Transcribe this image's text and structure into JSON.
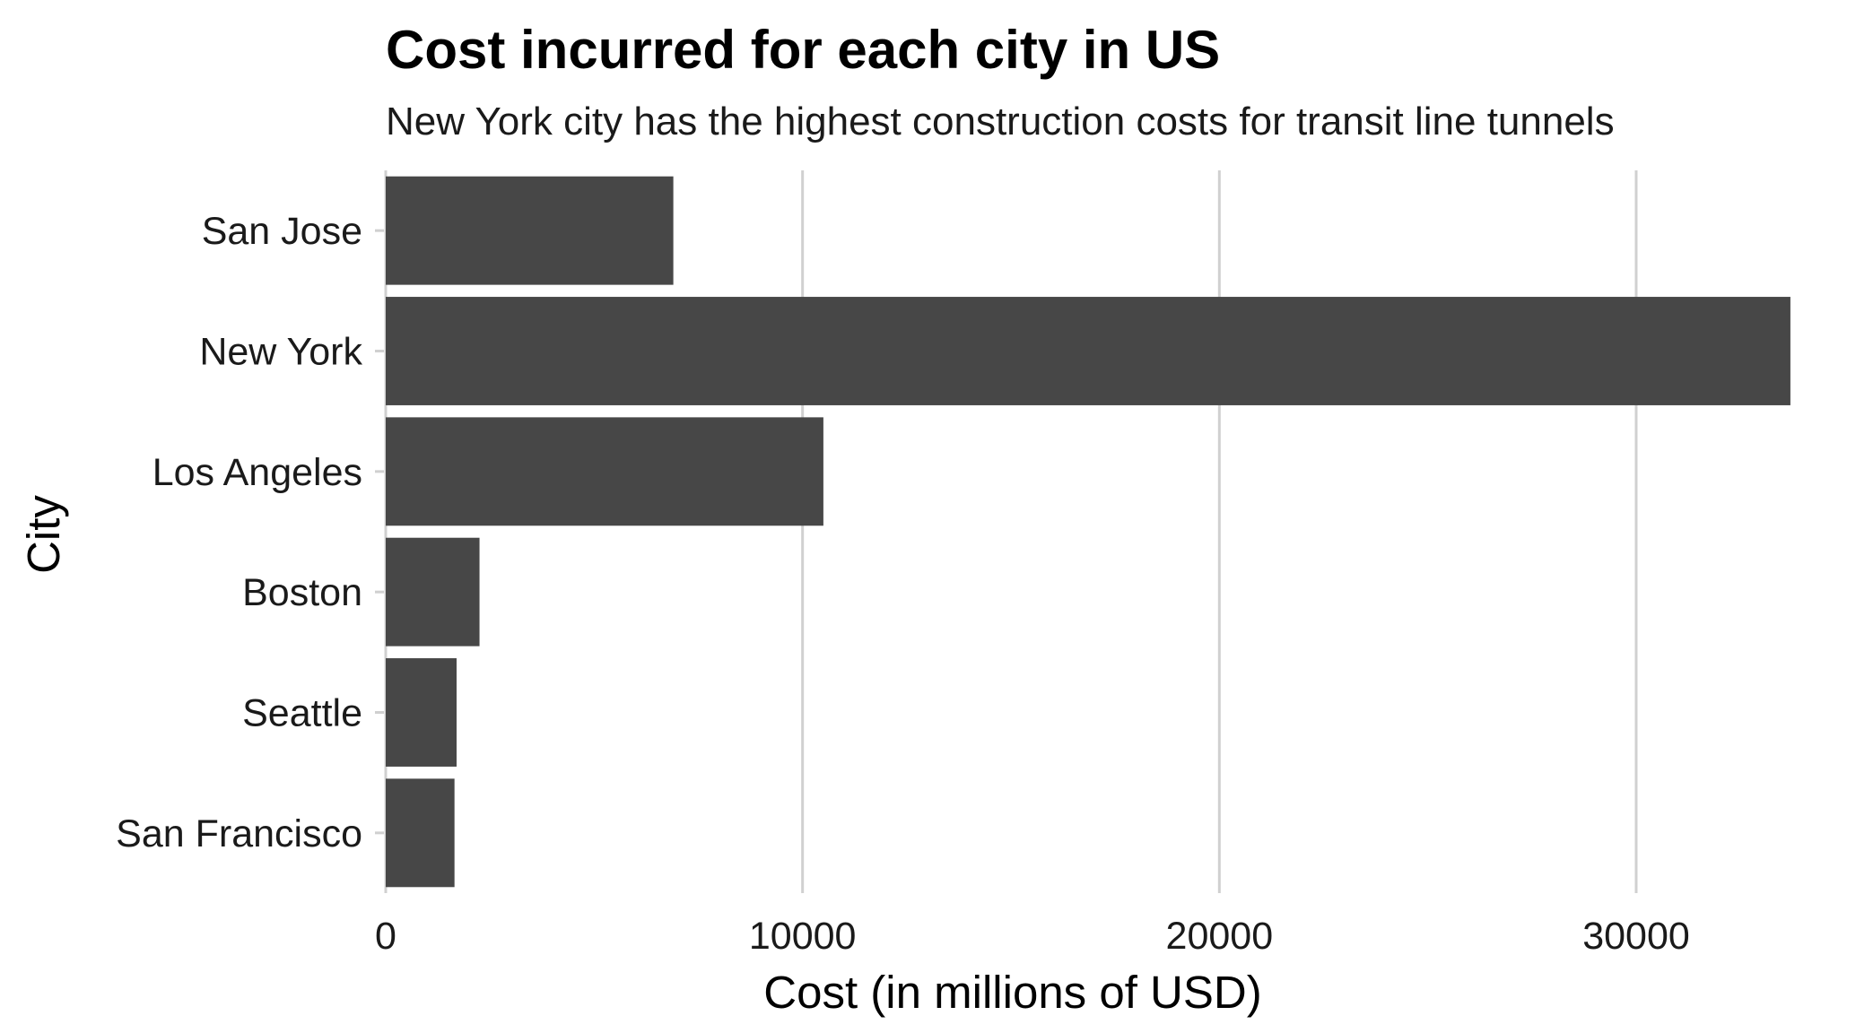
{
  "chart_data": {
    "type": "bar",
    "orientation": "horizontal",
    "title": "Cost incurred for each city in US",
    "subtitle": "New York city has the highest construction costs for transit line tunnels",
    "xlabel": "Cost (in millions of USD)",
    "ylabel": "City",
    "categories": [
      "San Jose",
      "New York",
      "Los Angeles",
      "Boston",
      "Seattle",
      "San Francisco"
    ],
    "values": [
      6900,
      33700,
      10500,
      2250,
      1700,
      1650
    ],
    "xlim": [
      0,
      35000
    ],
    "xticks": [
      0,
      10000,
      20000,
      30000
    ],
    "xtick_labels": [
      "0",
      "10000",
      "20000",
      "30000"
    ],
    "grid": "vertical major gridlines",
    "bar_color": "#474747",
    "grid_color": "#d0d0d0"
  }
}
